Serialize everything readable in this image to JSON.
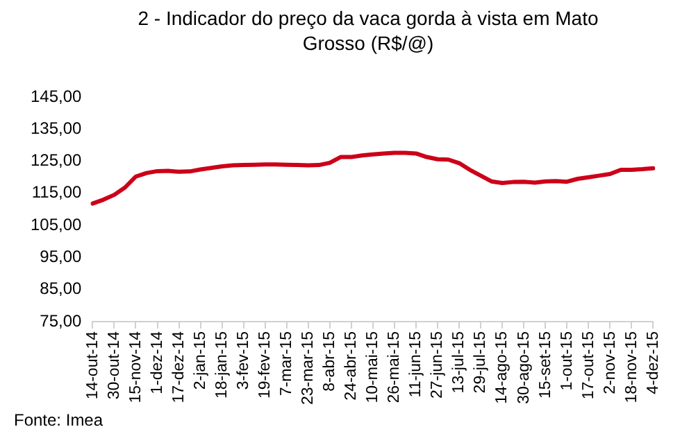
{
  "chart_data": {
    "type": "line",
    "title": "2 - Indicador do preço da vaca gorda à vista em Mato Grosso (R$/@)",
    "categories": [
      "14-out-14",
      null,
      "30-out-14",
      null,
      "15-nov-14",
      null,
      "1-dez-14",
      null,
      "17-dez-14",
      null,
      "2-jan-15",
      null,
      "18-jan-15",
      null,
      "3-fev-15",
      null,
      "19-fev-15",
      null,
      "7-mar-15",
      null,
      "23-mar-15",
      null,
      "8-abr-15",
      null,
      "24-abr-15",
      null,
      "10-mai-15",
      null,
      "26-mai-15",
      null,
      "11-jun-15",
      null,
      "27-jun-15",
      null,
      "13-jul-15",
      null,
      "29-jul-15",
      null,
      "14-ago-15",
      null,
      "30-ago-15",
      null,
      "15-set-15",
      null,
      "1-out-15",
      null,
      "17-out-15",
      null,
      "2-nov-15",
      null,
      "18-nov-15",
      null,
      "4-dez-15"
    ],
    "series": [
      {
        "color": "#cc0018",
        "values": [
          111.8,
          113.0,
          114.5,
          116.8,
          120.2,
          121.3,
          121.9,
          122.0,
          121.7,
          121.8,
          122.4,
          122.9,
          123.4,
          123.7,
          123.8,
          123.9,
          124.0,
          124.0,
          123.9,
          123.8,
          123.7,
          123.8,
          124.5,
          126.3,
          126.3,
          126.8,
          127.1,
          127.4,
          127.6,
          127.6,
          127.4,
          126.3,
          125.6,
          125.5,
          124.4,
          122.3,
          120.5,
          118.7,
          118.2,
          118.5,
          118.6,
          118.3,
          118.7,
          118.8,
          118.6,
          119.5,
          120.0,
          120.5,
          121.0,
          122.3,
          122.3,
          122.5,
          122.8
        ]
      }
    ],
    "ylim": [
      75,
      145
    ],
    "yticks": [
      {
        "value": 75,
        "label": "75,00"
      },
      {
        "value": 85,
        "label": "85,00"
      },
      {
        "value": 95,
        "label": "95,00"
      },
      {
        "value": 105,
        "label": "105,00"
      },
      {
        "value": 115,
        "label": "115,00"
      },
      {
        "value": 125,
        "label": "125,00"
      },
      {
        "value": 135,
        "label": "135,00"
      },
      {
        "value": 145,
        "label": "145,00"
      }
    ],
    "grid": false,
    "legend": false,
    "marker": "none",
    "line_style": "solid",
    "annotations": [
      "Fonte: Imea"
    ]
  }
}
